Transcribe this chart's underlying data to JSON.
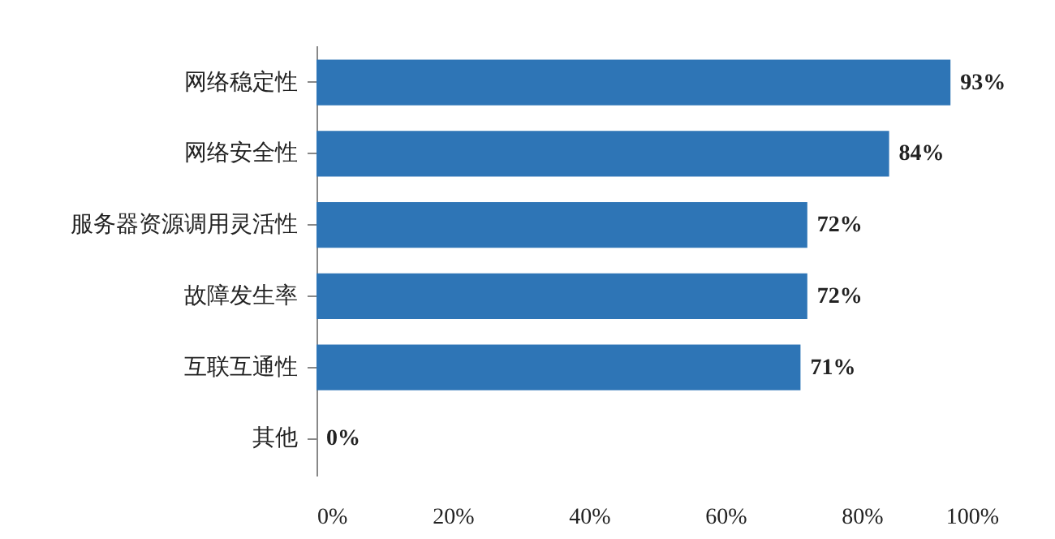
{
  "chart_data": {
    "type": "bar",
    "orientation": "horizontal",
    "categories": [
      "网络稳定性",
      "网络安全性",
      "服务器资源调用灵活性",
      "故障发生率",
      "互联互通性",
      "其他"
    ],
    "values": [
      93,
      84,
      72,
      72,
      71,
      0
    ],
    "value_labels": [
      "93%",
      "84%",
      "72%",
      "72%",
      "71%",
      "0%"
    ],
    "color": "#2e75b6",
    "xlim": [
      0,
      100
    ],
    "xticks": [
      {
        "value": 0,
        "label": "0%"
      },
      {
        "value": 20,
        "label": "20%"
      },
      {
        "value": 40,
        "label": "40%"
      },
      {
        "value": 60,
        "label": "60%"
      },
      {
        "value": 80,
        "label": "80%"
      },
      {
        "value": 100,
        "label": "100%"
      }
    ],
    "grid": false
  }
}
